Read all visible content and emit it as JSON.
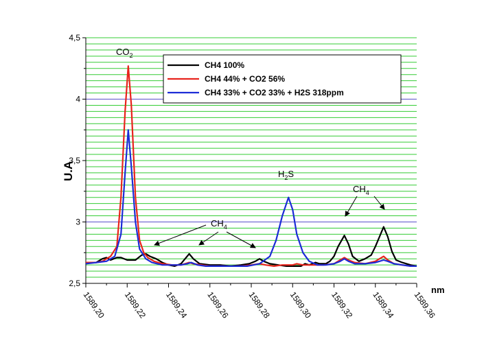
{
  "chart_data": {
    "type": "line",
    "xlabel": "nm",
    "ylabel": "U.A",
    "xlim": [
      1589.2,
      1589.36
    ],
    "ylim": [
      2.5,
      4.5
    ],
    "x_ticks": [
      "1589,20",
      "1589,22",
      "1589,24",
      "1589,26",
      "1589,28",
      "1589,30",
      "1589,32",
      "1589,34",
      "1589,36"
    ],
    "y_ticks": [
      "2,5",
      "3",
      "3,5",
      "4",
      "4,5"
    ],
    "grid": true,
    "legend_position": "top-right",
    "series": [
      {
        "name": "CH4 100%",
        "color": "#000000",
        "points": [
          [
            1589.2,
            2.67
          ],
          [
            1589.205,
            2.67
          ],
          [
            1589.208,
            2.7
          ],
          [
            1589.21,
            2.71
          ],
          [
            1589.212,
            2.69
          ],
          [
            1589.215,
            2.71
          ],
          [
            1589.217,
            2.71
          ],
          [
            1589.22,
            2.69
          ],
          [
            1589.224,
            2.69
          ],
          [
            1589.227,
            2.73
          ],
          [
            1589.229,
            2.74
          ],
          [
            1589.231,
            2.72
          ],
          [
            1589.234,
            2.7
          ],
          [
            1589.237,
            2.67
          ],
          [
            1589.24,
            2.65
          ],
          [
            1589.243,
            2.64
          ],
          [
            1589.246,
            2.66
          ],
          [
            1589.248,
            2.7
          ],
          [
            1589.25,
            2.74
          ],
          [
            1589.252,
            2.7
          ],
          [
            1589.255,
            2.66
          ],
          [
            1589.26,
            2.65
          ],
          [
            1589.265,
            2.65
          ],
          [
            1589.27,
            2.64
          ],
          [
            1589.275,
            2.65
          ],
          [
            1589.279,
            2.66
          ],
          [
            1589.282,
            2.68
          ],
          [
            1589.284,
            2.7
          ],
          [
            1589.286,
            2.68
          ],
          [
            1589.289,
            2.66
          ],
          [
            1589.293,
            2.65
          ],
          [
            1589.297,
            2.64
          ],
          [
            1589.3,
            2.64
          ],
          [
            1589.304,
            2.64
          ],
          [
            1589.306,
            2.66
          ],
          [
            1589.308,
            2.65
          ],
          [
            1589.311,
            2.67
          ],
          [
            1589.313,
            2.66
          ],
          [
            1589.316,
            2.66
          ],
          [
            1589.318,
            2.68
          ],
          [
            1589.32,
            2.72
          ],
          [
            1589.322,
            2.8
          ],
          [
            1589.325,
            2.89
          ],
          [
            1589.327,
            2.82
          ],
          [
            1589.329,
            2.72
          ],
          [
            1589.332,
            2.68
          ],
          [
            1589.335,
            2.7
          ],
          [
            1589.338,
            2.73
          ],
          [
            1589.34,
            2.8
          ],
          [
            1589.342,
            2.88
          ],
          [
            1589.344,
            2.96
          ],
          [
            1589.346,
            2.88
          ],
          [
            1589.348,
            2.76
          ],
          [
            1589.35,
            2.69
          ],
          [
            1589.353,
            2.67
          ],
          [
            1589.357,
            2.65
          ],
          [
            1589.36,
            2.64
          ]
        ]
      },
      {
        "name": "CH4 44% + CO2 56%",
        "color": "#e8231c",
        "points": [
          [
            1589.2,
            2.67
          ],
          [
            1589.205,
            2.67
          ],
          [
            1589.208,
            2.68
          ],
          [
            1589.212,
            2.72
          ],
          [
            1589.215,
            2.8
          ],
          [
            1589.217,
            3.2
          ],
          [
            1589.219,
            3.9
          ],
          [
            1589.2205,
            4.27
          ],
          [
            1589.222,
            3.95
          ],
          [
            1589.224,
            3.2
          ],
          [
            1589.226,
            2.85
          ],
          [
            1589.228,
            2.75
          ],
          [
            1589.23,
            2.71
          ],
          [
            1589.233,
            2.68
          ],
          [
            1589.237,
            2.66
          ],
          [
            1589.242,
            2.65
          ],
          [
            1589.246,
            2.65
          ],
          [
            1589.248,
            2.66
          ],
          [
            1589.25,
            2.67
          ],
          [
            1589.252,
            2.66
          ],
          [
            1589.256,
            2.65
          ],
          [
            1589.26,
            2.64
          ],
          [
            1589.265,
            2.64
          ],
          [
            1589.27,
            2.64
          ],
          [
            1589.275,
            2.64
          ],
          [
            1589.28,
            2.65
          ],
          [
            1589.284,
            2.66
          ],
          [
            1589.287,
            2.65
          ],
          [
            1589.291,
            2.64
          ],
          [
            1589.295,
            2.65
          ],
          [
            1589.3,
            2.65
          ],
          [
            1589.302,
            2.66
          ],
          [
            1589.305,
            2.65
          ],
          [
            1589.31,
            2.65
          ],
          [
            1589.315,
            2.65
          ],
          [
            1589.32,
            2.66
          ],
          [
            1589.323,
            2.69
          ],
          [
            1589.325,
            2.71
          ],
          [
            1589.327,
            2.69
          ],
          [
            1589.33,
            2.67
          ],
          [
            1589.335,
            2.66
          ],
          [
            1589.34,
            2.68
          ],
          [
            1589.342,
            2.7
          ],
          [
            1589.344,
            2.72
          ],
          [
            1589.346,
            2.69
          ],
          [
            1589.349,
            2.66
          ],
          [
            1589.353,
            2.65
          ],
          [
            1589.357,
            2.64
          ],
          [
            1589.36,
            2.64
          ]
        ]
      },
      {
        "name": "CH4 33% + CO2 33% + H2S 318ppm",
        "color": "#1c2bd6",
        "points": [
          [
            1589.2,
            2.66
          ],
          [
            1589.205,
            2.67
          ],
          [
            1589.21,
            2.68
          ],
          [
            1589.214,
            2.72
          ],
          [
            1589.217,
            2.9
          ],
          [
            1589.219,
            3.4
          ],
          [
            1589.2205,
            3.75
          ],
          [
            1589.222,
            3.45
          ],
          [
            1589.224,
            3.0
          ],
          [
            1589.226,
            2.78
          ],
          [
            1589.229,
            2.7
          ],
          [
            1589.232,
            2.67
          ],
          [
            1589.237,
            2.65
          ],
          [
            1589.242,
            2.65
          ],
          [
            1589.246,
            2.65
          ],
          [
            1589.249,
            2.66
          ],
          [
            1589.251,
            2.67
          ],
          [
            1589.254,
            2.65
          ],
          [
            1589.258,
            2.64
          ],
          [
            1589.265,
            2.64
          ],
          [
            1589.272,
            2.64
          ],
          [
            1589.278,
            2.64
          ],
          [
            1589.284,
            2.66
          ],
          [
            1589.289,
            2.72
          ],
          [
            1589.292,
            2.85
          ],
          [
            1589.295,
            3.05
          ],
          [
            1589.298,
            3.2
          ],
          [
            1589.3,
            3.1
          ],
          [
            1589.302,
            2.9
          ],
          [
            1589.305,
            2.75
          ],
          [
            1589.308,
            2.68
          ],
          [
            1589.312,
            2.65
          ],
          [
            1589.316,
            2.65
          ],
          [
            1589.32,
            2.66
          ],
          [
            1589.323,
            2.68
          ],
          [
            1589.325,
            2.7
          ],
          [
            1589.327,
            2.68
          ],
          [
            1589.33,
            2.66
          ],
          [
            1589.335,
            2.66
          ],
          [
            1589.34,
            2.67
          ],
          [
            1589.342,
            2.68
          ],
          [
            1589.344,
            2.69
          ],
          [
            1589.346,
            2.68
          ],
          [
            1589.349,
            2.66
          ],
          [
            1589.353,
            2.65
          ],
          [
            1589.357,
            2.64
          ],
          [
            1589.36,
            2.64
          ]
        ]
      }
    ],
    "annotations": [
      {
        "base": "CO",
        "sub": "2"
      },
      {
        "base": "CH",
        "sub": "4"
      },
      {
        "base": "H",
        "sub": "2",
        "tail": "S"
      },
      {
        "base": "CH",
        "sub": "4"
      }
    ]
  }
}
